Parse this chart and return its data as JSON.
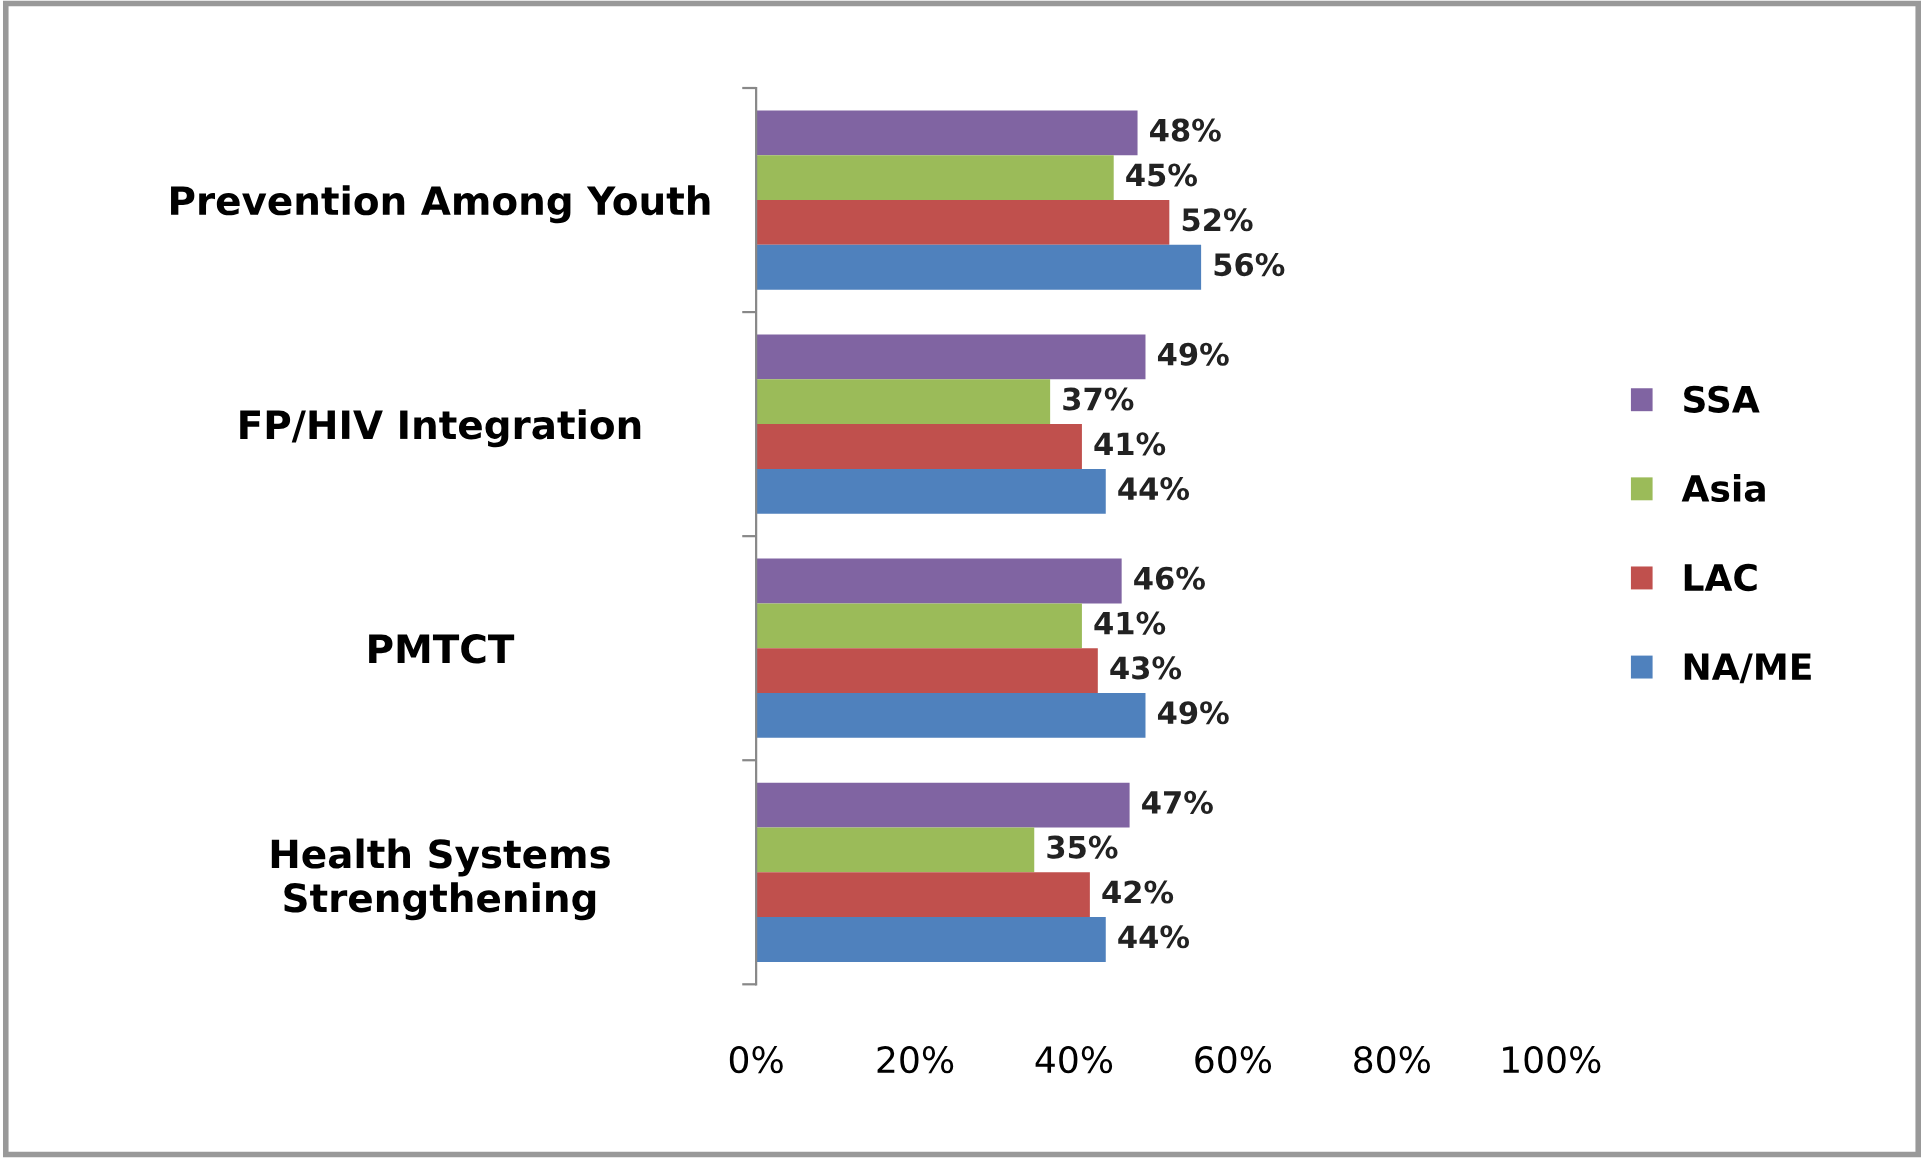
{
  "chart_data": {
    "type": "bar",
    "orientation": "horizontal",
    "categories": [
      "Prevention Among Youth",
      "FP/HIV Integration",
      "PMTCT",
      "Health Systems\nStrengthening"
    ],
    "series": [
      {
        "name": "SSA",
        "color": "#8064a2",
        "values": [
          48,
          49,
          46,
          47
        ],
        "value_labels": [
          "48%",
          "49%",
          "46%",
          "47%"
        ]
      },
      {
        "name": "Asia",
        "color": "#9bbb59",
        "values": [
          45,
          37,
          41,
          35
        ],
        "value_labels": [
          "45%",
          "37%",
          "41%",
          "35%"
        ]
      },
      {
        "name": "LAC",
        "color": "#c0504d",
        "values": [
          52,
          41,
          43,
          42
        ],
        "value_labels": [
          "52%",
          "41%",
          "43%",
          "42%"
        ]
      },
      {
        "name": "NA/ME",
        "color": "#4f81bd",
        "values": [
          56,
          44,
          49,
          44
        ],
        "value_labels": [
          "56%",
          "44%",
          "49%",
          "44%"
        ]
      }
    ],
    "xlim": [
      0,
      100
    ],
    "xticks": [
      {
        "value": 0,
        "label": "0%"
      },
      {
        "value": 20,
        "label": "20%"
      },
      {
        "value": 40,
        "label": "40%"
      },
      {
        "value": 60,
        "label": "60%"
      },
      {
        "value": 80,
        "label": "80%"
      },
      {
        "value": 100,
        "label": "100%"
      }
    ],
    "grid": false,
    "legend": "right"
  }
}
